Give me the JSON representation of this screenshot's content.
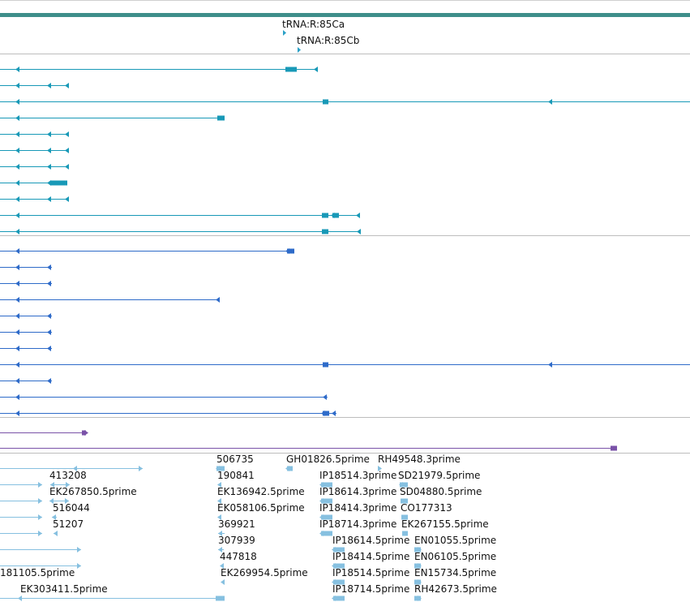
{
  "colors": {
    "gene": "#3e8e8a",
    "tRNA": "#2aa0c6",
    "transcript_teal": "#1899b7",
    "transcript_blue": "#2e6bc9",
    "transcript_purple": "#7a52a8",
    "est": "#86c0e0",
    "divider": "#bdbdbd"
  },
  "trna": [
    {
      "label": "tRNA:R:85Ca"
    },
    {
      "label": "tRNA:R:85Cb"
    }
  ],
  "est_col1": [
    "413208",
    "EK267850.5prime",
    "516044",
    "51207",
    "181105.5prime",
    "EK303411.5prime"
  ],
  "est_col2": [
    "506735",
    "190841",
    "EK136942.5prime",
    "EK058106.5prime",
    "369921",
    "307939",
    "447818",
    "EK269954.5prime"
  ],
  "est_col3": [
    "GH01826.5prime",
    "IP18514.3prime",
    "IP18614.3prime",
    "IP18414.3prime",
    "IP18714.3prime",
    "IP18614.5prime",
    "IP18414.5prime",
    "IP18514.5prime",
    "IP18714.5prime"
  ],
  "est_col4": [
    "RH49548.3prime",
    "SD21979.5prime",
    "SD04880.5prime",
    "CO177313",
    "EK267155.5prime",
    "EN01055.5prime",
    "EN06105.5prime",
    "EN15734.5prime",
    "RH42673.5prime"
  ]
}
